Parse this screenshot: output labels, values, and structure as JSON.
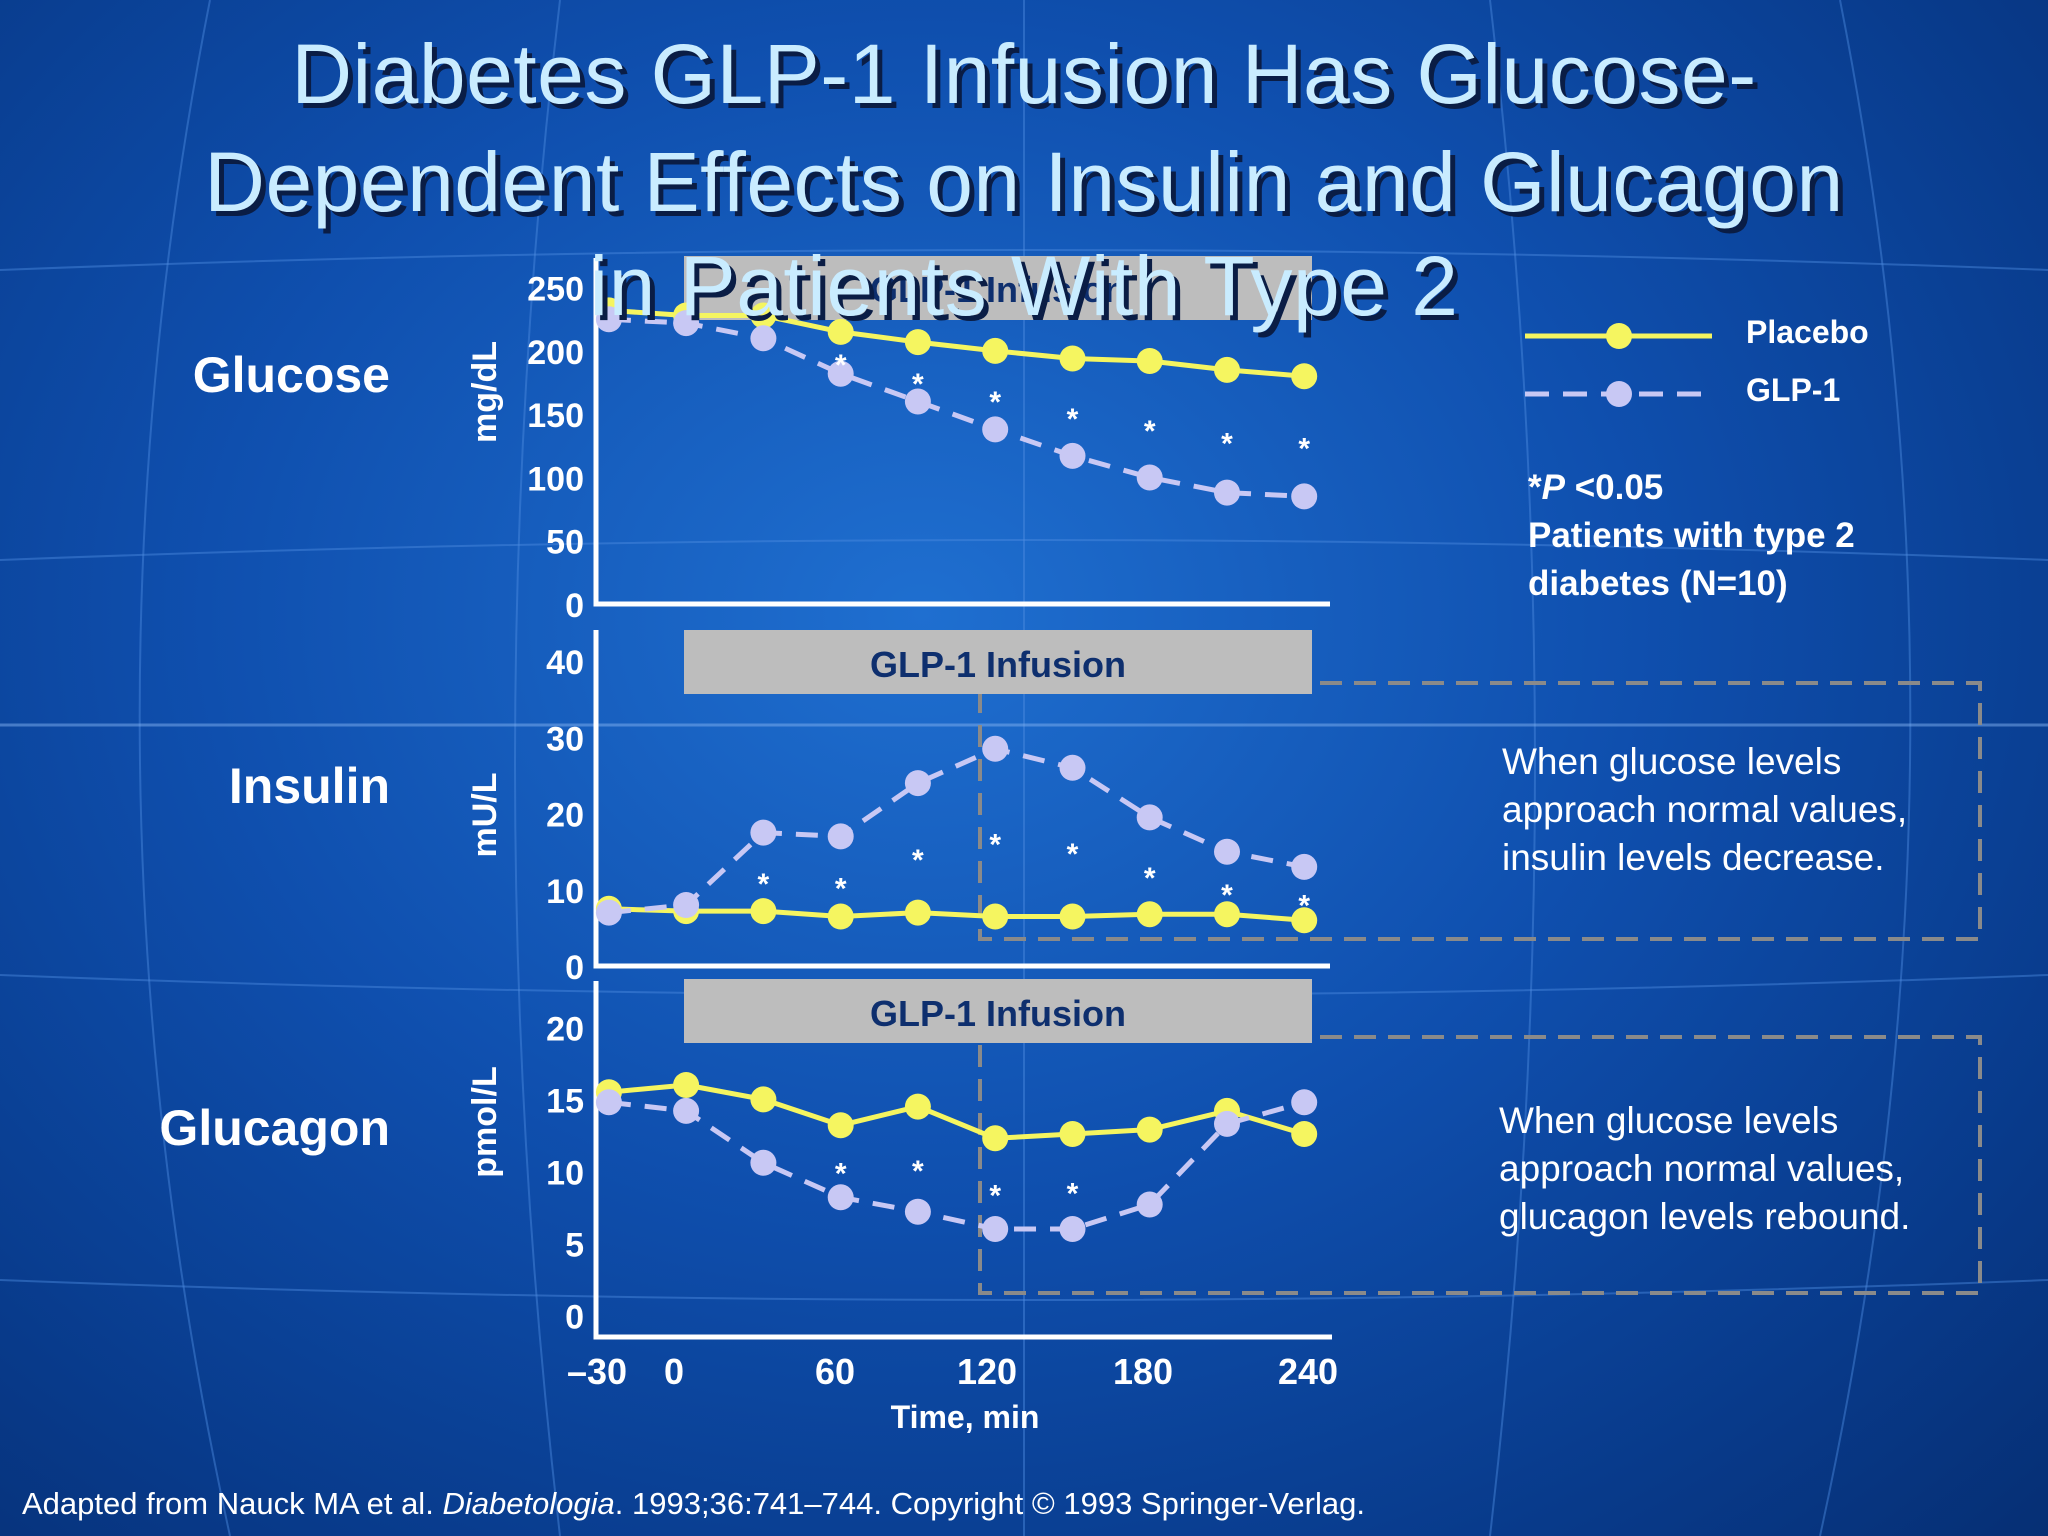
{
  "title": {
    "line1": "Diabetes GLP-1 Infusion Has Glucose-",
    "line2": "Dependent Effects on Insulin and Glucagon",
    "line3": "in Patients With Type 2"
  },
  "legend": {
    "placebo": "Placebo",
    "glp1": "GLP-1"
  },
  "note": {
    "sig_star": "*",
    "sig_p": "P",
    "sig_rest": " <0.05",
    "line2": "Patients with type 2",
    "line3": "diabetes (N=10)"
  },
  "annotations": {
    "insulin": [
      "When glucose levels",
      "approach normal values,",
      "insulin levels decrease."
    ],
    "glucagon": [
      "When glucose levels",
      "approach normal values,",
      "glucagon levels rebound."
    ]
  },
  "footnote": {
    "before": "Adapted from Nauck MA et al. ",
    "journal": "Diabetologia",
    "after": ". 1993;36:741–744. Copyright © 1993 Springer-Verlag."
  },
  "colors": {
    "placebo": "#f5f560",
    "glp1": "#c8c8f4",
    "band": "#bdbdbd",
    "band_text": "#0e2f6e",
    "axis": "#ffffff",
    "dashed_box": "#8a8a8a"
  },
  "chart_data": [
    {
      "type": "line",
      "panel_label": "Glucose",
      "ylabel": "mg/dL",
      "band_label": "GLP-1 Infusion",
      "yticks": [
        0,
        50,
        100,
        150,
        200,
        250
      ],
      "ylim": [
        0,
        275
      ],
      "xlim": [
        -35,
        250
      ],
      "x": [
        -30,
        0,
        30,
        60,
        90,
        120,
        150,
        180,
        210,
        240
      ],
      "series": [
        {
          "name": "Placebo",
          "style": "solid",
          "values": [
            232,
            228,
            228,
            215,
            207,
            200,
            194,
            192,
            185,
            180
          ]
        },
        {
          "name": "GLP-1",
          "style": "dashed",
          "values": [
            225,
            222,
            210,
            182,
            160,
            138,
            117,
            100,
            88,
            85
          ]
        }
      ],
      "significant_x": [
        60,
        90,
        120,
        150,
        180,
        210,
        240
      ]
    },
    {
      "type": "line",
      "panel_label": "Insulin",
      "ylabel": "mU/L",
      "band_label": "GLP-1 Infusion",
      "yticks": [
        0,
        10,
        20,
        30,
        40
      ],
      "ylim": [
        0,
        45
      ],
      "xlim": [
        -35,
        250
      ],
      "x": [
        -30,
        0,
        30,
        60,
        90,
        120,
        150,
        180,
        210,
        240
      ],
      "series": [
        {
          "name": "Placebo",
          "style": "solid",
          "values": [
            7.5,
            7.2,
            7.2,
            6.5,
            7,
            6.5,
            6.5,
            6.8,
            6.8,
            6
          ]
        },
        {
          "name": "GLP-1",
          "style": "dashed",
          "values": [
            7,
            8,
            17.5,
            17,
            24,
            28.5,
            26,
            19.5,
            15,
            13
          ]
        }
      ],
      "significant_x": [
        30,
        60,
        90,
        120,
        150,
        180,
        210,
        240
      ]
    },
    {
      "type": "line",
      "panel_label": "Glucagon",
      "ylabel": "pmol/L",
      "band_label": "GLP-1 Infusion",
      "yticks": [
        0,
        5,
        10,
        15,
        20
      ],
      "ylim": [
        -1.5,
        23.5
      ],
      "xlim": [
        -35,
        250
      ],
      "x": [
        -30,
        0,
        30,
        60,
        90,
        120,
        150,
        180,
        210,
        240
      ],
      "xticks": [
        -30,
        0,
        60,
        120,
        180,
        240
      ],
      "xtick_labels": [
        "–30",
        "0",
        "60",
        "120",
        "180",
        "240"
      ],
      "xlabel": "Time, min",
      "series": [
        {
          "name": "Placebo",
          "style": "solid",
          "values": [
            15.5,
            16,
            15,
            13.2,
            14.5,
            12.3,
            12.6,
            12.9,
            14.2,
            12.6
          ]
        },
        {
          "name": "GLP-1",
          "style": "dashed",
          "values": [
            14.8,
            14.2,
            10.6,
            8.2,
            7.2,
            6,
            6,
            7.7,
            13.3,
            14.8
          ]
        }
      ],
      "significant_x": [
        60,
        90,
        120,
        150
      ]
    }
  ]
}
